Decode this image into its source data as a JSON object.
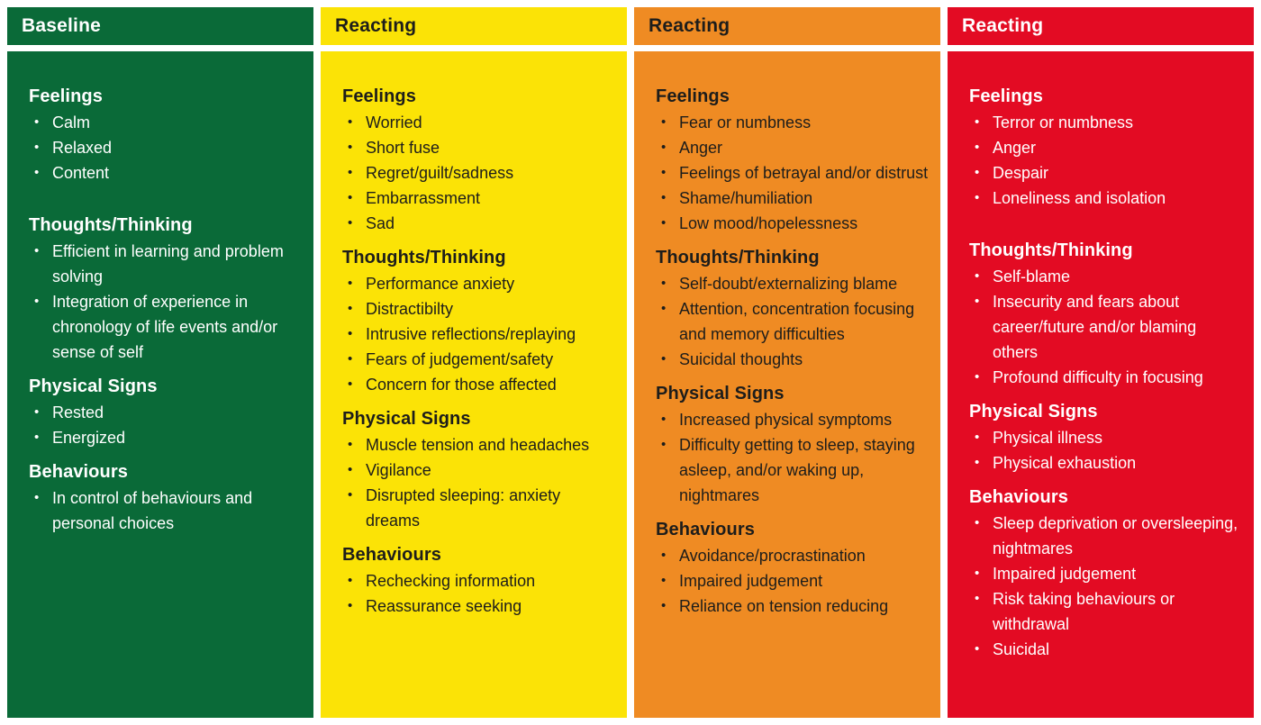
{
  "page_background": "#FFFFFF",
  "board": {
    "columns": [
      {
        "id": "baseline",
        "header": {
          "label": "Baseline"
        },
        "colors": {
          "background": "#0A6A38",
          "header_text": "#FFFFFF",
          "body_text": "#FFFFFF"
        },
        "sections": [
          {
            "title": "Feelings",
            "items": [
              "Calm",
              "Relaxed",
              "Content"
            ]
          },
          {
            "title": "Thoughts/Thinking",
            "items": [
              "Efficient in learning and problem solving",
              "Integration of experience in chronology of life events and/or sense of self"
            ]
          },
          {
            "title": "Physical Signs",
            "items": [
              "Rested",
              "Energized"
            ]
          },
          {
            "title": "Behaviours",
            "items": [
              "In control of behaviours and personal choices"
            ]
          }
        ]
      },
      {
        "id": "reacting-yellow",
        "header": {
          "label": "Reacting"
        },
        "colors": {
          "background": "#FBE306",
          "header_text": "#1D1D1B",
          "body_text": "#1D1D1B"
        },
        "sections": [
          {
            "title": "Feelings",
            "items": [
              "Worried",
              "Short fuse",
              "Regret/guilt/sadness",
              "Embarrassment",
              "Sad"
            ]
          },
          {
            "title": "Thoughts/Thinking",
            "items": [
              "Performance anxiety",
              "Distractibilty",
              "Intrusive reflections/replaying",
              "Fears of judgement/safety",
              "Concern for those affected"
            ]
          },
          {
            "title": "Physical Signs",
            "items": [
              "Muscle tension and headaches",
              "Vigilance",
              "Disrupted sleeping: anxiety dreams"
            ]
          },
          {
            "title": "Behaviours",
            "items": [
              "Rechecking information",
              "Reassurance seeking"
            ]
          }
        ]
      },
      {
        "id": "reacting-orange",
        "header": {
          "label": "Reacting"
        },
        "colors": {
          "background": "#EF8B23",
          "header_text": "#1D1D1B",
          "body_text": "#1D1D1B"
        },
        "sections": [
          {
            "title": "Feelings",
            "items": [
              "Fear or numbness",
              "Anger",
              "Feelings of betrayal and/or distrust",
              "Shame/humiliation",
              "Low mood/hopelessness"
            ]
          },
          {
            "title": "Thoughts/Thinking",
            "items": [
              "Self-doubt/externalizing blame",
              "Attention, concentration focusing and memory difficulties",
              "Suicidal thoughts"
            ]
          },
          {
            "title": "Physical Signs",
            "items": [
              "Increased physical symptoms",
              "Difficulty getting to sleep, staying asleep, and/or waking up, nightmares"
            ]
          },
          {
            "title": "Behaviours",
            "items": [
              "Avoidance/procrastination",
              "Impaired judgement",
              "Reliance on tension reducing"
            ]
          }
        ]
      },
      {
        "id": "reacting-red",
        "header": {
          "label": "Reacting"
        },
        "colors": {
          "background": "#E30B23",
          "header_text": "#FFFFFF",
          "body_text": "#FFFFFF"
        },
        "sections": [
          {
            "title": "Feelings",
            "items": [
              "Terror or numbness",
              "Anger",
              "Despair",
              "Loneliness and isolation"
            ]
          },
          {
            "title": "Thoughts/Thinking",
            "items": [
              "Self-blame",
              "Insecurity and fears about career/future and/or blaming others",
              "Profound difficulty in focusing"
            ]
          },
          {
            "title": "Physical Signs",
            "items": [
              "Physical illness",
              "Physical exhaustion"
            ]
          },
          {
            "title": "Behaviours",
            "items": [
              "Sleep deprivation or oversleeping, nightmares",
              "Impaired judgement",
              "Risk taking behaviours or withdrawal",
              "Suicidal"
            ]
          }
        ]
      }
    ]
  }
}
